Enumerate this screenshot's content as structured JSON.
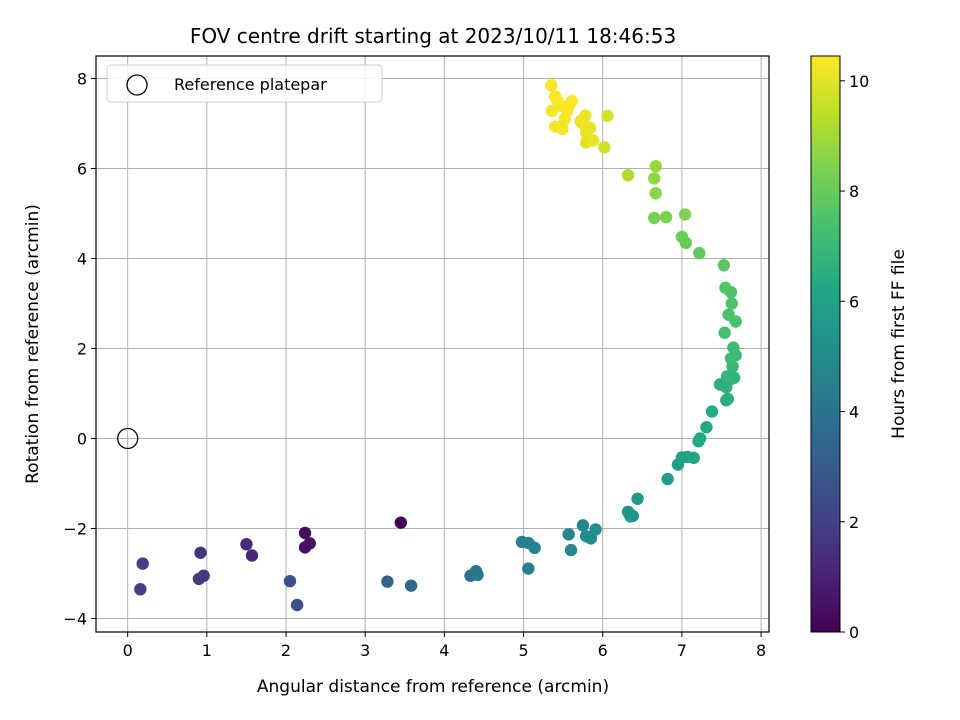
{
  "chart_data": {
    "type": "scatter",
    "title": "FOV centre drift starting at 2023/10/11 18:46:53",
    "xlabel": "Angular distance from reference (arcmin)",
    "ylabel": "Rotation from reference (arcmin)",
    "colorbar_label": "Hours from first FF file",
    "xlim": [
      -0.4,
      8.1
    ],
    "ylim": [
      -4.3,
      8.5
    ],
    "clim": [
      0,
      10.45
    ],
    "x_ticks": [
      0,
      1,
      2,
      3,
      4,
      5,
      6,
      7,
      8
    ],
    "y_ticks": [
      -4,
      -2,
      0,
      2,
      4,
      6,
      8
    ],
    "colorbar_ticks": [
      0,
      2,
      4,
      6,
      8,
      10
    ],
    "colormap": "viridis",
    "grid": true,
    "legend": {
      "position": "upper-left",
      "entries": [
        {
          "label": "Reference platepar",
          "marker": "open-circle",
          "x": 0,
          "y": 0
        }
      ]
    },
    "points": [
      [
        3.45,
        -1.87,
        0.0
      ],
      [
        2.24,
        -2.1,
        0.35
      ],
      [
        2.24,
        -2.42,
        0.45
      ],
      [
        2.3,
        -2.33,
        0.55
      ],
      [
        1.57,
        -2.6,
        1.2
      ],
      [
        1.5,
        -2.35,
        1.3
      ],
      [
        0.92,
        -2.54,
        1.6
      ],
      [
        0.96,
        -3.05,
        1.7
      ],
      [
        0.9,
        -3.12,
        1.8
      ],
      [
        0.19,
        -2.78,
        1.9
      ],
      [
        0.16,
        -3.35,
        2.0
      ],
      [
        2.05,
        -3.17,
        2.5
      ],
      [
        2.14,
        -3.7,
        2.6
      ],
      [
        3.28,
        -3.18,
        3.3
      ],
      [
        3.58,
        -3.27,
        3.5
      ],
      [
        4.33,
        -3.05,
        4.0
      ],
      [
        4.4,
        -2.95,
        4.1
      ],
      [
        4.42,
        -3.03,
        4.2
      ],
      [
        5.06,
        -2.89,
        4.4
      ],
      [
        4.98,
        -2.3,
        4.5
      ],
      [
        5.06,
        -2.32,
        4.6
      ],
      [
        5.14,
        -2.43,
        4.65
      ],
      [
        5.57,
        -2.13,
        4.75
      ],
      [
        5.6,
        -2.48,
        4.8
      ],
      [
        5.75,
        -1.93,
        4.9
      ],
      [
        5.79,
        -2.17,
        5.0
      ],
      [
        5.85,
        -2.22,
        5.05
      ],
      [
        5.91,
        -2.02,
        5.1
      ],
      [
        6.32,
        -1.63,
        5.3
      ],
      [
        6.35,
        -1.73,
        5.35
      ],
      [
        6.38,
        -1.72,
        5.4
      ],
      [
        6.44,
        -1.34,
        5.5
      ],
      [
        6.82,
        -0.9,
        5.8
      ],
      [
        6.95,
        -0.58,
        5.9
      ],
      [
        7.0,
        -0.42,
        6.0
      ],
      [
        7.07,
        -0.41,
        6.05
      ],
      [
        7.15,
        -0.43,
        6.1
      ],
      [
        7.21,
        -0.06,
        6.2
      ],
      [
        7.23,
        0.0,
        6.25
      ],
      [
        7.31,
        0.25,
        6.3
      ],
      [
        7.38,
        0.6,
        6.4
      ],
      [
        7.56,
        0.85,
        6.5
      ],
      [
        7.58,
        0.88,
        6.55
      ],
      [
        7.48,
        1.2,
        6.6
      ],
      [
        7.53,
        1.21,
        6.65
      ],
      [
        7.56,
        1.14,
        6.7
      ],
      [
        7.6,
        1.3,
        6.75
      ],
      [
        7.66,
        1.35,
        6.8
      ],
      [
        7.57,
        1.38,
        6.85
      ],
      [
        7.64,
        1.6,
        6.95
      ],
      [
        7.68,
        1.85,
        7.05
      ],
      [
        7.65,
        2.02,
        7.1
      ],
      [
        7.62,
        1.78,
        7.15
      ],
      [
        7.54,
        2.35,
        7.3
      ],
      [
        7.68,
        2.6,
        7.4
      ],
      [
        7.59,
        2.75,
        7.45
      ],
      [
        7.63,
        3.0,
        7.5
      ],
      [
        7.62,
        3.25,
        7.55
      ],
      [
        7.55,
        3.35,
        7.6
      ],
      [
        7.53,
        3.85,
        7.7
      ],
      [
        7.22,
        4.12,
        7.9
      ],
      [
        7.05,
        4.35,
        8.0
      ],
      [
        7.0,
        4.48,
        8.05
      ],
      [
        6.65,
        4.9,
        8.3
      ],
      [
        6.8,
        4.92,
        8.35
      ],
      [
        7.04,
        4.98,
        8.4
      ],
      [
        6.67,
        5.45,
        8.6
      ],
      [
        6.65,
        5.78,
        8.7
      ],
      [
        6.67,
        6.05,
        8.8
      ],
      [
        6.32,
        5.85,
        9.2
      ],
      [
        6.02,
        6.47,
        9.7
      ],
      [
        6.06,
        7.17,
        9.75
      ],
      [
        5.79,
        6.58,
        10.0
      ],
      [
        5.79,
        6.8,
        10.05
      ],
      [
        5.84,
        6.9,
        10.1
      ],
      [
        5.88,
        6.62,
        10.12
      ],
      [
        5.75,
        7.0,
        10.15
      ],
      [
        5.78,
        7.18,
        10.18
      ],
      [
        5.72,
        7.05,
        10.2
      ],
      [
        5.4,
        6.93,
        10.25
      ],
      [
        5.49,
        6.88,
        10.28
      ],
      [
        5.52,
        7.1,
        10.3
      ],
      [
        5.36,
        7.28,
        10.32
      ],
      [
        5.45,
        7.4,
        10.35
      ],
      [
        5.57,
        7.4,
        10.38
      ],
      [
        5.55,
        7.28,
        10.4
      ],
      [
        5.61,
        7.5,
        10.42
      ],
      [
        5.4,
        7.6,
        10.43
      ],
      [
        5.43,
        7.5,
        10.44
      ],
      [
        5.35,
        7.85,
        10.45
      ]
    ]
  }
}
